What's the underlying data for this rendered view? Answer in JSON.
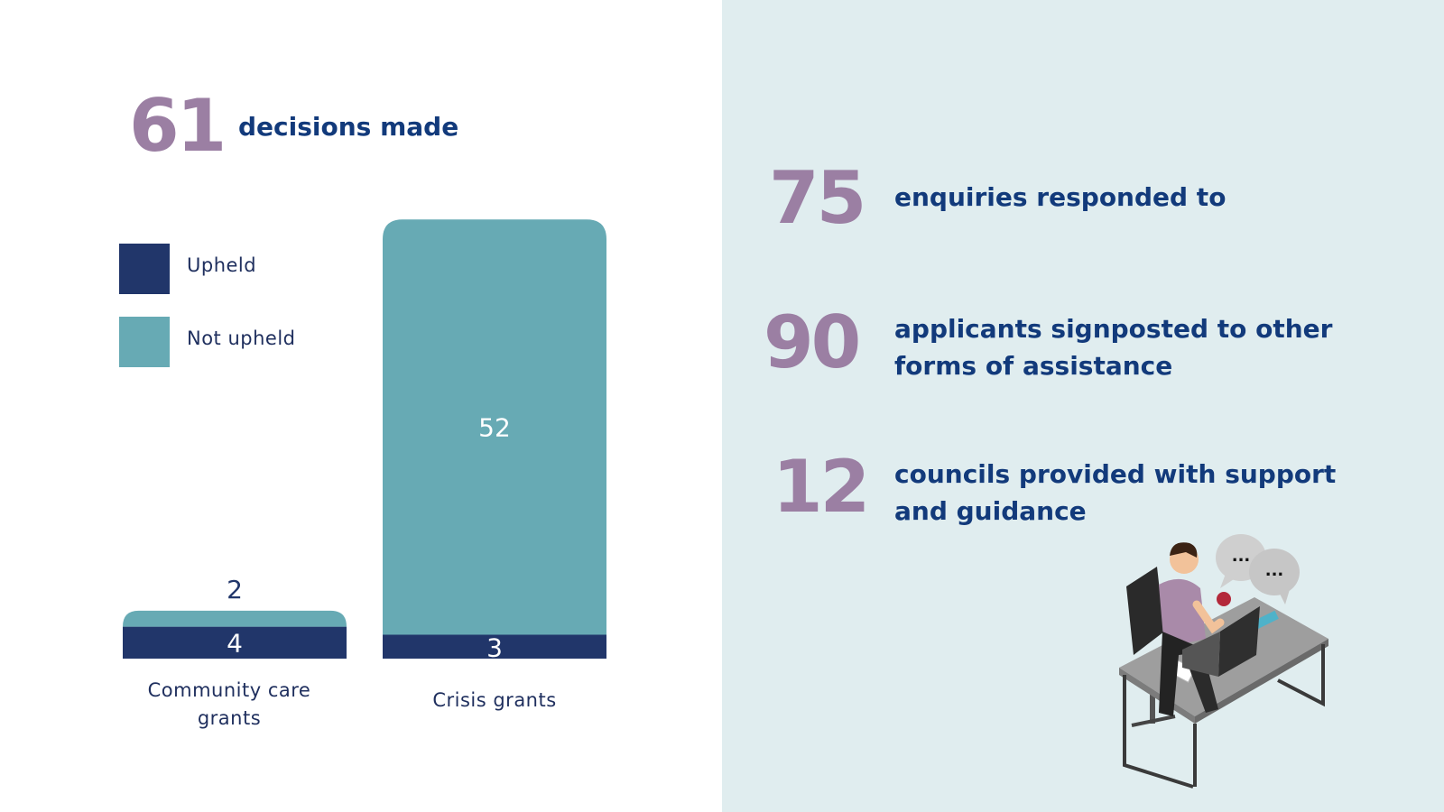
{
  "headline": {
    "number": "61",
    "text": "decisions made"
  },
  "legend": [
    {
      "label": "Upheld",
      "color": "#21366a"
    },
    {
      "label": "Not upheld",
      "color": "#67aab4"
    }
  ],
  "stats": [
    {
      "number": "75",
      "text_lines": [
        "enquiries responded to"
      ]
    },
    {
      "number": "90",
      "text_lines": [
        "applicants signposted to other",
        "forms of assistance"
      ]
    },
    {
      "number": "12",
      "text_lines": [
        "councils provided with support",
        "and guidance"
      ]
    }
  ],
  "colors": {
    "accent_number": "#9b7fa3",
    "heading_text": "#123a7b",
    "right_panel_bg": "#e0edef"
  },
  "chart_data": {
    "type": "bar",
    "stacked": true,
    "categories": [
      [
        "Community care",
        "grants"
      ],
      [
        "Crisis grants"
      ]
    ],
    "series": [
      {
        "name": "Upheld",
        "color": "#21366a",
        "values": [
          4,
          3
        ]
      },
      {
        "name": "Not upheld",
        "color": "#67aab4",
        "values": [
          2,
          52
        ]
      }
    ],
    "data_labels": [
      [
        "4",
        "2"
      ],
      [
        "3",
        "52"
      ]
    ],
    "legend_placement": "left",
    "grid": false
  },
  "illustration": {
    "icon": "person-at-desk-with-laptop-icon",
    "speech_bubble_text": [
      "...",
      "..."
    ]
  }
}
